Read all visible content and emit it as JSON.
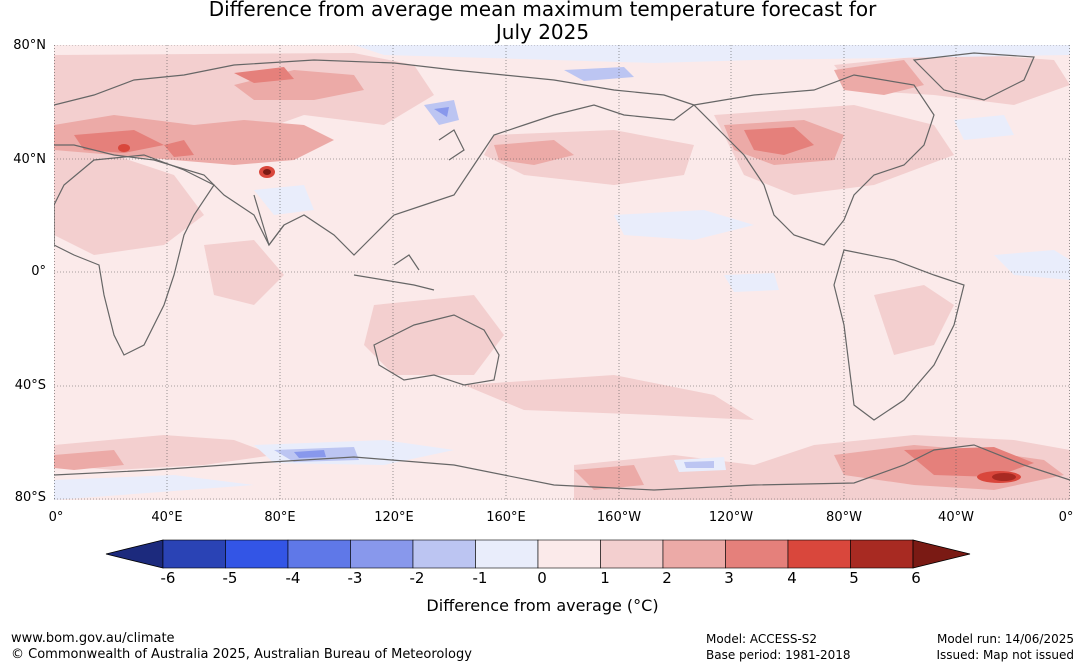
{
  "title": {
    "line1": "Difference from average mean maximum temperature forecast for",
    "line2": "July 2025"
  },
  "axes": {
    "lat_labels": [
      "80°N",
      "40°N",
      "0°",
      "40°S",
      "80°S"
    ],
    "lon_labels": [
      "0°",
      "40°E",
      "80°E",
      "120°E",
      "160°E",
      "160°W",
      "120°W",
      "80°W",
      "40°W",
      "0°"
    ]
  },
  "colorbar": {
    "ticks": [
      "-6",
      "-5",
      "-4",
      "-3",
      "-2",
      "-1",
      "0",
      "1",
      "2",
      "3",
      "4",
      "5",
      "6"
    ],
    "colors": [
      "#1c2a7d",
      "#2a43b5",
      "#3355e6",
      "#5f78e8",
      "#8898ec",
      "#bcc5f2",
      "#e9edfb",
      "#fbeaea",
      "#f3cfcf",
      "#ecaaa7",
      "#e5807b",
      "#d9473c",
      "#a82a22",
      "#7a1a14"
    ],
    "label": "Difference from average (°C)"
  },
  "footer": {
    "website": "www.bom.gov.au/climate",
    "copyright": "© Commonwealth of Australia 2025, Australian Bureau of Meteorology",
    "model": "Model: ACCESS-S2",
    "base_period": "Base period: 1981-2018",
    "model_run": "Model run: 14/06/2025",
    "issued": "Issued: Map not issued"
  }
}
